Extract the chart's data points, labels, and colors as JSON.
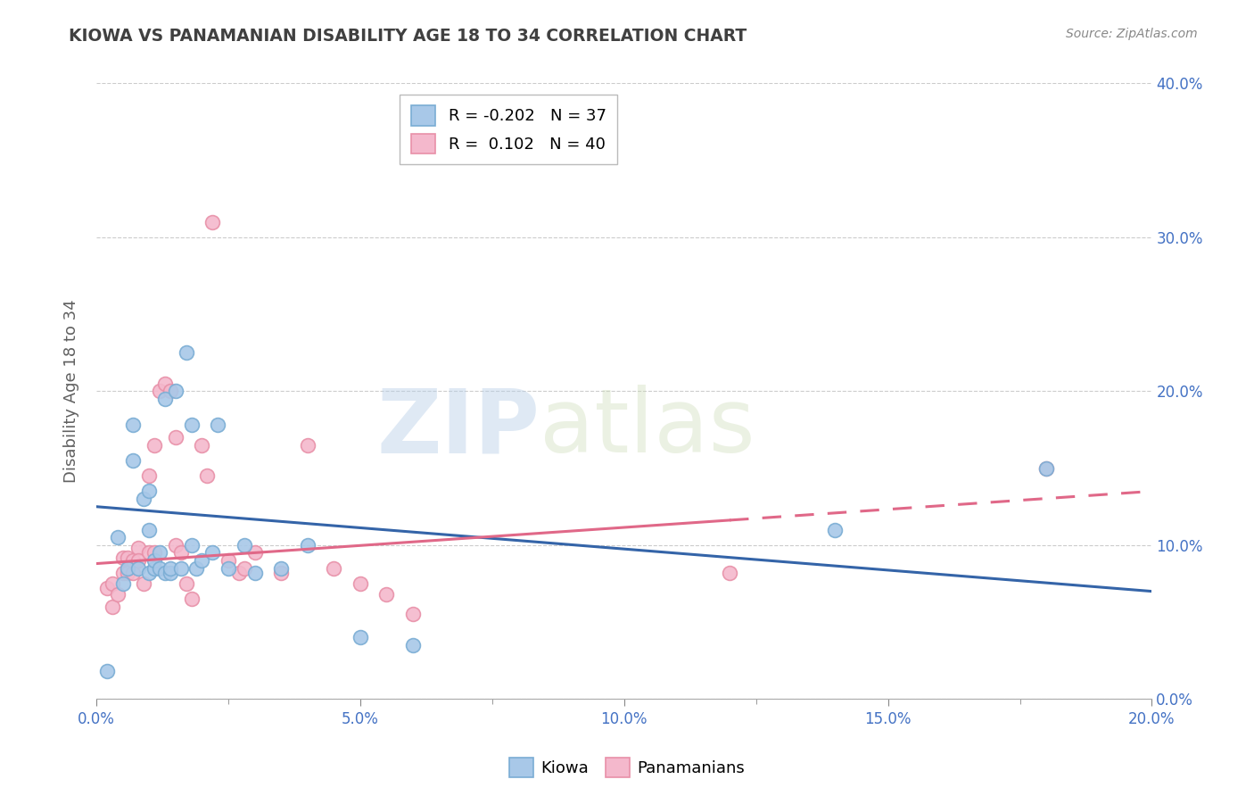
{
  "title": "KIOWA VS PANAMANIAN DISABILITY AGE 18 TO 34 CORRELATION CHART",
  "source": "Source: ZipAtlas.com",
  "xlabel": "",
  "ylabel": "Disability Age 18 to 34",
  "xlim": [
    0,
    0.2
  ],
  "ylim": [
    0,
    0.4
  ],
  "xticks": [
    0.0,
    0.025,
    0.05,
    0.075,
    0.1,
    0.125,
    0.15,
    0.175,
    0.2
  ],
  "xtick_major": [
    0.0,
    0.05,
    0.1,
    0.15,
    0.2
  ],
  "xtick_labels_major": [
    "0.0%",
    "5.0%",
    "10.0%",
    "15.0%",
    "20.0%"
  ],
  "yticks": [
    0.0,
    0.1,
    0.2,
    0.3,
    0.4
  ],
  "ytick_labels": [
    "0.0%",
    "10.0%",
    "20.0%",
    "30.0%",
    "40.0%"
  ],
  "kiowa_color": "#a8c8e8",
  "kiowa_edge_color": "#7aadd4",
  "panamanian_color": "#f4b8cc",
  "panamanian_edge_color": "#e890a8",
  "kiowa_line_color": "#3464a8",
  "panamanian_line_color": "#e06888",
  "legend_kiowa": "R = -0.202   N = 37",
  "legend_panamanian": "R =  0.102   N = 40",
  "watermark_zip": "ZIP",
  "watermark_atlas": "atlas",
  "kiowa_x": [
    0.002,
    0.004,
    0.005,
    0.006,
    0.007,
    0.007,
    0.008,
    0.009,
    0.01,
    0.01,
    0.01,
    0.011,
    0.011,
    0.012,
    0.012,
    0.013,
    0.013,
    0.014,
    0.014,
    0.015,
    0.016,
    0.017,
    0.018,
    0.018,
    0.019,
    0.02,
    0.022,
    0.023,
    0.025,
    0.028,
    0.03,
    0.035,
    0.04,
    0.05,
    0.06,
    0.14,
    0.18
  ],
  "kiowa_y": [
    0.018,
    0.105,
    0.075,
    0.085,
    0.178,
    0.155,
    0.085,
    0.13,
    0.135,
    0.11,
    0.082,
    0.085,
    0.09,
    0.085,
    0.095,
    0.082,
    0.195,
    0.082,
    0.085,
    0.2,
    0.085,
    0.225,
    0.178,
    0.1,
    0.085,
    0.09,
    0.095,
    0.178,
    0.085,
    0.1,
    0.082,
    0.085,
    0.1,
    0.04,
    0.035,
    0.11,
    0.15
  ],
  "pana_x": [
    0.002,
    0.003,
    0.003,
    0.004,
    0.005,
    0.005,
    0.006,
    0.006,
    0.007,
    0.007,
    0.008,
    0.008,
    0.009,
    0.01,
    0.01,
    0.011,
    0.011,
    0.012,
    0.013,
    0.014,
    0.015,
    0.015,
    0.016,
    0.017,
    0.018,
    0.02,
    0.021,
    0.022,
    0.025,
    0.027,
    0.028,
    0.03,
    0.035,
    0.04,
    0.045,
    0.05,
    0.055,
    0.06,
    0.12,
    0.18
  ],
  "pana_y": [
    0.072,
    0.06,
    0.075,
    0.068,
    0.082,
    0.092,
    0.082,
    0.092,
    0.082,
    0.09,
    0.098,
    0.09,
    0.075,
    0.095,
    0.145,
    0.165,
    0.095,
    0.2,
    0.205,
    0.2,
    0.17,
    0.1,
    0.095,
    0.075,
    0.065,
    0.165,
    0.145,
    0.31,
    0.09,
    0.082,
    0.085,
    0.095,
    0.082,
    0.165,
    0.085,
    0.075,
    0.068,
    0.055,
    0.082,
    0.15
  ],
  "background_color": "#ffffff",
  "grid_color": "#cccccc",
  "tick_color": "#888888",
  "label_color": "#4472c4",
  "title_color": "#404040",
  "ylabel_color": "#606060"
}
